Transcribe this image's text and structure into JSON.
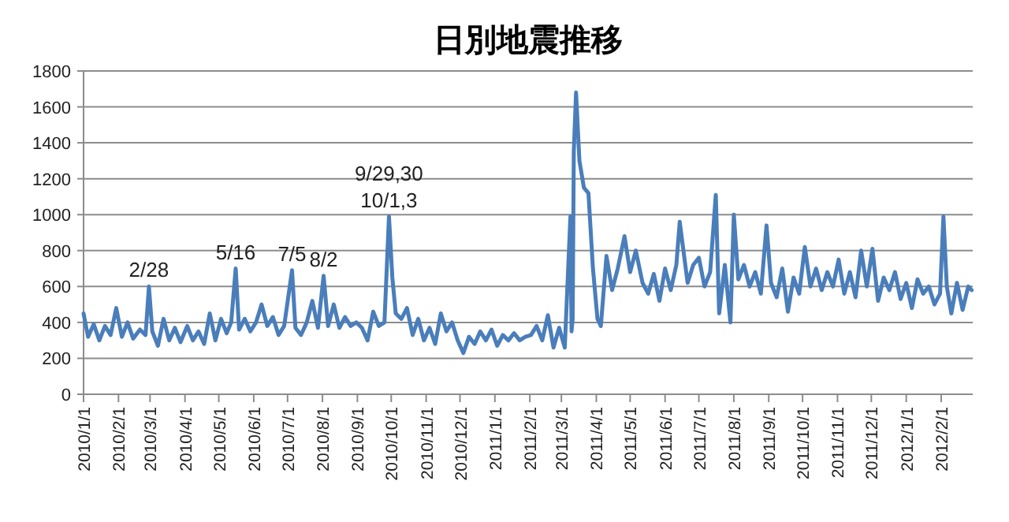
{
  "chart_data": {
    "type": "line",
    "title": "日別地震推移",
    "x": [
      "2010-01-01",
      "2010-01-05",
      "2010-01-10",
      "2010-01-15",
      "2010-01-20",
      "2010-01-25",
      "2010-01-30",
      "2010-02-04",
      "2010-02-09",
      "2010-02-14",
      "2010-02-20",
      "2010-02-25",
      "2010-02-28",
      "2010-03-03",
      "2010-03-08",
      "2010-03-13",
      "2010-03-18",
      "2010-03-23",
      "2010-03-28",
      "2010-04-03",
      "2010-04-08",
      "2010-04-13",
      "2010-04-18",
      "2010-04-23",
      "2010-04-28",
      "2010-05-03",
      "2010-05-08",
      "2010-05-12",
      "2010-05-16",
      "2010-05-19",
      "2010-05-24",
      "2010-05-29",
      "2010-06-03",
      "2010-06-08",
      "2010-06-13",
      "2010-06-18",
      "2010-06-23",
      "2010-06-28",
      "2010-07-05",
      "2010-07-08",
      "2010-07-13",
      "2010-07-18",
      "2010-07-23",
      "2010-07-28",
      "2010-08-02",
      "2010-08-06",
      "2010-08-11",
      "2010-08-16",
      "2010-08-21",
      "2010-08-26",
      "2010-08-31",
      "2010-09-05",
      "2010-09-10",
      "2010-09-15",
      "2010-09-20",
      "2010-09-25",
      "2010-09-29",
      "2010-10-02",
      "2010-10-05",
      "2010-10-10",
      "2010-10-15",
      "2010-10-20",
      "2010-10-25",
      "2010-10-30",
      "2010-11-04",
      "2010-11-09",
      "2010-11-14",
      "2010-11-19",
      "2010-11-24",
      "2010-11-29",
      "2010-12-04",
      "2010-12-09",
      "2010-12-14",
      "2010-12-19",
      "2010-12-24",
      "2010-12-29",
      "2011-01-03",
      "2011-01-08",
      "2011-01-13",
      "2011-01-18",
      "2011-01-23",
      "2011-01-28",
      "2011-02-02",
      "2011-02-07",
      "2011-02-12",
      "2011-02-17",
      "2011-02-22",
      "2011-02-27",
      "2011-03-04",
      "2011-03-09",
      "2011-03-10",
      "2011-03-11",
      "2011-03-12",
      "2011-03-14",
      "2011-03-17",
      "2011-03-21",
      "2011-03-25",
      "2011-03-29",
      "2011-04-02",
      "2011-04-05",
      "2011-04-10",
      "2011-04-15",
      "2011-04-20",
      "2011-04-26",
      "2011-05-01",
      "2011-05-06",
      "2011-05-12",
      "2011-05-17",
      "2011-05-22",
      "2011-05-27",
      "2011-06-01",
      "2011-06-06",
      "2011-06-11",
      "2011-06-14",
      "2011-06-21",
      "2011-06-26",
      "2011-07-01",
      "2011-07-06",
      "2011-07-11",
      "2011-07-16",
      "2011-07-19",
      "2011-07-24",
      "2011-07-29",
      "2011-08-01",
      "2011-08-05",
      "2011-08-10",
      "2011-08-15",
      "2011-08-20",
      "2011-08-25",
      "2011-08-30",
      "2011-09-03",
      "2011-09-08",
      "2011-09-13",
      "2011-09-18",
      "2011-09-23",
      "2011-09-28",
      "2011-10-03",
      "2011-10-08",
      "2011-10-13",
      "2011-10-18",
      "2011-10-23",
      "2011-10-28",
      "2011-11-02",
      "2011-11-07",
      "2011-11-12",
      "2011-11-17",
      "2011-11-22",
      "2011-11-27",
      "2011-12-02",
      "2011-12-07",
      "2011-12-12",
      "2011-12-17",
      "2011-12-22",
      "2011-12-27",
      "2012-01-01",
      "2012-01-06",
      "2012-01-11",
      "2012-01-16",
      "2012-01-21",
      "2012-01-26",
      "2012-01-31",
      "2012-02-03",
      "2012-02-06",
      "2012-02-10",
      "2012-02-15",
      "2012-02-20",
      "2012-02-25",
      "2012-02-28"
    ],
    "series": [
      {
        "color": "#4a7ebb",
        "values": [
          450,
          320,
          390,
          300,
          380,
          330,
          480,
          320,
          400,
          310,
          360,
          330,
          600,
          350,
          270,
          420,
          300,
          370,
          290,
          380,
          300,
          350,
          280,
          450,
          300,
          420,
          340,
          400,
          700,
          360,
          420,
          350,
          400,
          500,
          380,
          430,
          330,
          380,
          690,
          370,
          330,
          400,
          520,
          370,
          660,
          380,
          500,
          370,
          430,
          380,
          400,
          370,
          300,
          460,
          380,
          400,
          990,
          650,
          450,
          420,
          480,
          330,
          420,
          300,
          370,
          280,
          450,
          350,
          400,
          300,
          230,
          320,
          280,
          350,
          300,
          360,
          270,
          330,
          300,
          340,
          300,
          320,
          330,
          380,
          300,
          440,
          260,
          370,
          260,
          990,
          350,
          420,
          1350,
          1680,
          1300,
          1150,
          1120,
          700,
          420,
          380,
          770,
          580,
          700,
          880,
          680,
          800,
          620,
          560,
          670,
          520,
          700,
          580,
          720,
          960,
          620,
          720,
          760,
          600,
          680,
          1110,
          450,
          720,
          400,
          1000,
          640,
          720,
          600,
          680,
          560,
          940,
          620,
          540,
          700,
          460,
          650,
          560,
          820,
          600,
          700,
          580,
          680,
          600,
          750,
          560,
          680,
          540,
          800,
          600,
          810,
          520,
          650,
          580,
          680,
          530,
          620,
          480,
          640,
          560,
          600,
          500,
          560,
          990,
          600,
          450,
          620,
          470,
          600,
          580
        ]
      }
    ],
    "xlim": [
      "2010-01-01",
      "2012-02-29"
    ],
    "xticks": [
      {
        "value": "2010-01-01",
        "label": "2010/1/1"
      },
      {
        "value": "2010-02-01",
        "label": "2010/2/1"
      },
      {
        "value": "2010-03-01",
        "label": "2010/3/1"
      },
      {
        "value": "2010-04-01",
        "label": "2010/4/1"
      },
      {
        "value": "2010-05-01",
        "label": "2010/5/1"
      },
      {
        "value": "2010-06-01",
        "label": "2010/6/1"
      },
      {
        "value": "2010-07-01",
        "label": "2010/7/1"
      },
      {
        "value": "2010-08-01",
        "label": "2010/8/1"
      },
      {
        "value": "2010-09-01",
        "label": "2010/9/1"
      },
      {
        "value": "2010-10-01",
        "label": "2010/10/1"
      },
      {
        "value": "2010-11-01",
        "label": "2010/11/1"
      },
      {
        "value": "2010-12-01",
        "label": "2010/12/1"
      },
      {
        "value": "2011-01-01",
        "label": "2011/1/1"
      },
      {
        "value": "2011-02-01",
        "label": "2011/2/1"
      },
      {
        "value": "2011-03-01",
        "label": "2011/3/1"
      },
      {
        "value": "2011-04-01",
        "label": "2011/4/1"
      },
      {
        "value": "2011-05-01",
        "label": "2011/5/1"
      },
      {
        "value": "2011-06-01",
        "label": "2011/6/1"
      },
      {
        "value": "2011-07-01",
        "label": "2011/7/1"
      },
      {
        "value": "2011-08-01",
        "label": "2011/8/1"
      },
      {
        "value": "2011-09-01",
        "label": "2011/9/1"
      },
      {
        "value": "2011-10-01",
        "label": "2011/10/1"
      },
      {
        "value": "2011-11-01",
        "label": "2011/11/1"
      },
      {
        "value": "2011-12-01",
        "label": "2011/12/1"
      },
      {
        "value": "2012-01-01",
        "label": "2012/1/1"
      },
      {
        "value": "2012-02-01",
        "label": "2012/2/1"
      }
    ],
    "ylim": [
      0,
      1800
    ],
    "yticks": [
      0,
      200,
      400,
      600,
      800,
      1000,
      1200,
      1400,
      1600,
      1800
    ],
    "grid": "y",
    "marker": "none",
    "line_style": "solid",
    "annotations": [
      {
        "text": "2/28",
        "x": "2010-02-28",
        "y": 600
      },
      {
        "text": "5/16",
        "x": "2010-05-16",
        "y": 700
      },
      {
        "text": "7/5",
        "x": "2010-07-05",
        "y": 690
      },
      {
        "text": "8/2",
        "x": "2010-08-02",
        "y": 660
      },
      {
        "text": "9/29,30\n10/1,3",
        "x": "2010-09-29",
        "y": 990
      }
    ]
  }
}
